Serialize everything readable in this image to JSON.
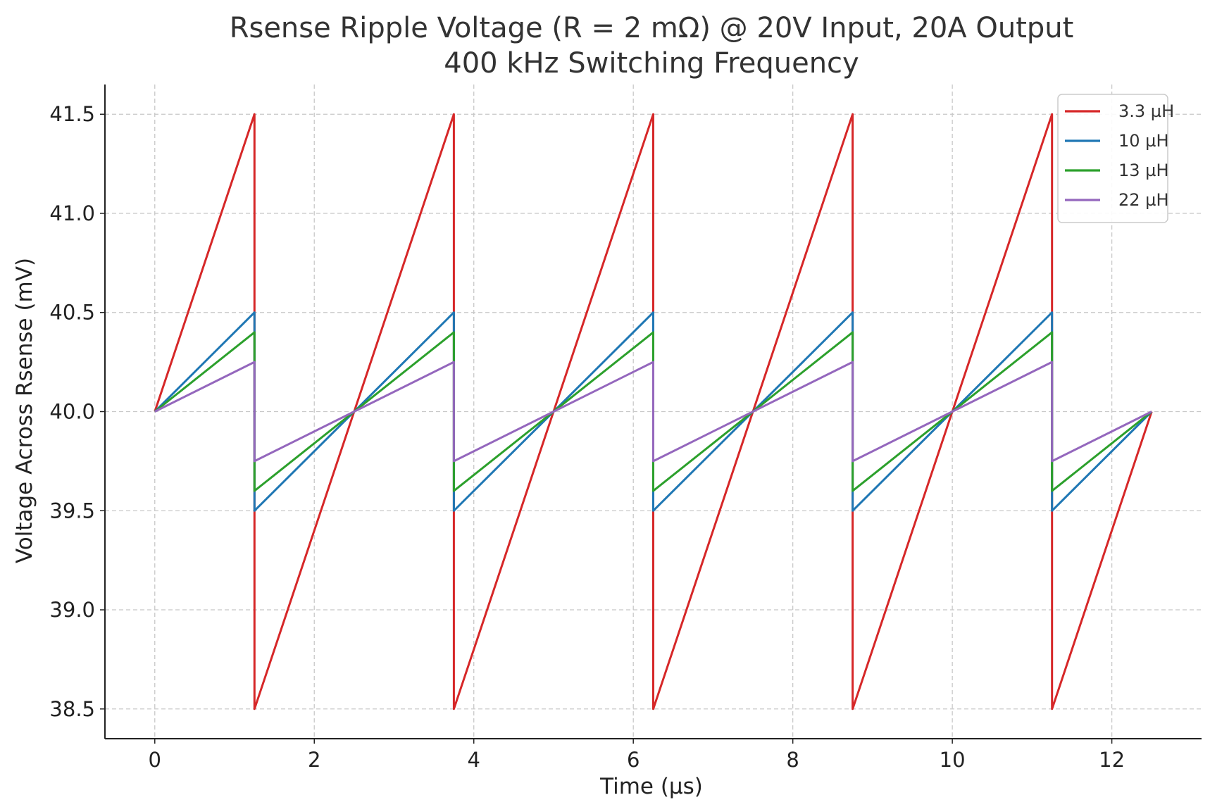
{
  "chart_data": {
    "type": "line",
    "title": "Rsense Ripple Voltage (R = 2 mΩ) @ 20V Input, 20A Output",
    "subtitle": "400 kHz Switching Frequency",
    "xlabel": "Time (µs)",
    "ylabel": "Voltage Across Rsense (mV)",
    "xlim": [
      -0.625,
      13.125
    ],
    "ylim": [
      38.35,
      41.65
    ],
    "xticks": [
      0,
      2,
      4,
      6,
      8,
      10,
      12
    ],
    "yticks": [
      38.5,
      39.0,
      39.5,
      40.0,
      40.5,
      41.0,
      41.5
    ],
    "ytick_labels": [
      "38.5",
      "39.0",
      "39.5",
      "40.0",
      "40.5",
      "41.0",
      "41.5"
    ],
    "grid": true,
    "legend_position": "top-right",
    "series": [
      {
        "name": "3.3 µH",
        "color": "#d62728",
        "x": [
          0,
          1.25,
          1.25,
          3.75,
          3.75,
          6.25,
          6.25,
          8.75,
          8.75,
          11.25,
          11.25,
          12.5
        ],
        "y": [
          40.0,
          41.5,
          38.5,
          41.5,
          38.5,
          41.5,
          38.5,
          41.5,
          38.5,
          41.5,
          38.5,
          40.0
        ]
      },
      {
        "name": "10 µH",
        "color": "#1f77b4",
        "x": [
          0,
          1.25,
          1.25,
          3.75,
          3.75,
          6.25,
          6.25,
          8.75,
          8.75,
          11.25,
          11.25,
          12.5
        ],
        "y": [
          40.0,
          40.5,
          39.5,
          40.5,
          39.5,
          40.5,
          39.5,
          40.5,
          39.5,
          40.5,
          39.5,
          40.0
        ]
      },
      {
        "name": "13 µH",
        "color": "#2ca02c",
        "x": [
          0,
          1.25,
          1.25,
          3.75,
          3.75,
          6.25,
          6.25,
          8.75,
          8.75,
          11.25,
          11.25,
          12.5
        ],
        "y": [
          40.0,
          40.4,
          39.6,
          40.4,
          39.6,
          40.4,
          39.6,
          40.4,
          39.6,
          40.4,
          39.6,
          40.0
        ]
      },
      {
        "name": "22 µH",
        "color": "#9467bd",
        "x": [
          0,
          1.25,
          1.25,
          3.75,
          3.75,
          6.25,
          6.25,
          8.75,
          8.75,
          11.25,
          11.25,
          12.5
        ],
        "y": [
          40.0,
          40.25,
          39.75,
          40.25,
          39.75,
          40.25,
          39.75,
          40.25,
          39.75,
          40.25,
          39.75,
          40.0
        ]
      }
    ]
  }
}
